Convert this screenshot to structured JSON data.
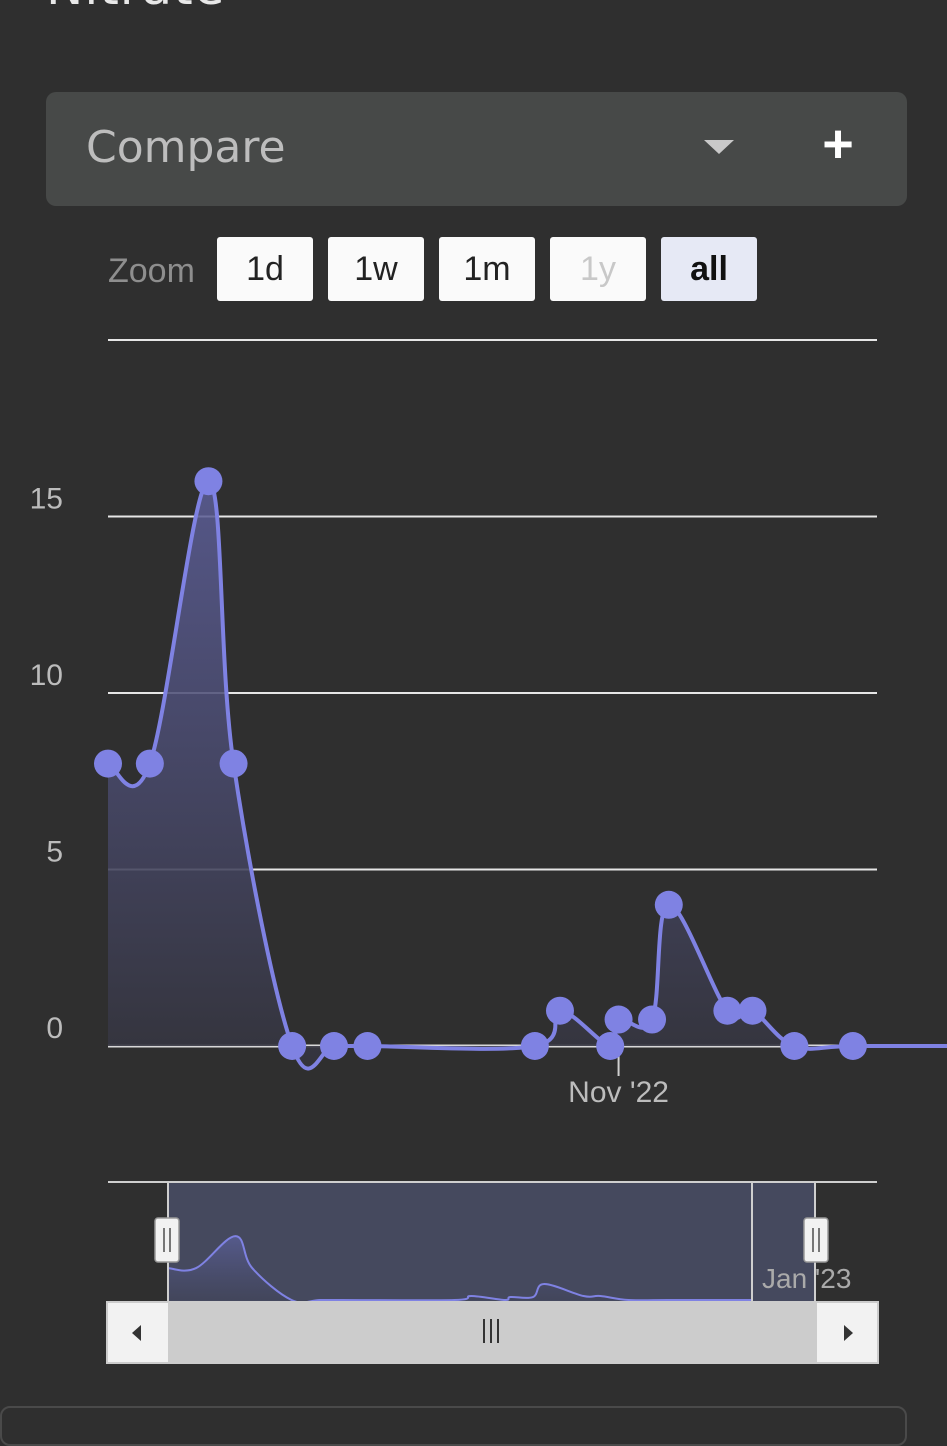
{
  "header": {
    "title": "Nitrate"
  },
  "compare": {
    "label": "Compare",
    "caret_icon": "chevron-down-icon",
    "add_icon": "plus-icon"
  },
  "zoom": {
    "label": "Zoom",
    "buttons": [
      {
        "label": "1d",
        "state": "normal"
      },
      {
        "label": "1w",
        "state": "normal"
      },
      {
        "label": "1m",
        "state": "normal"
      },
      {
        "label": "1y",
        "state": "disabled"
      },
      {
        "label": "all",
        "state": "selected"
      }
    ]
  },
  "chart_data": {
    "type": "area",
    "title": "",
    "xlabel": "",
    "ylabel": "",
    "x_tick_labels": [
      "Nov '22",
      "Jan '23"
    ],
    "y_tick_labels": [
      "0",
      "5",
      "10",
      "15"
    ],
    "ylim": [
      0,
      20
    ],
    "grid": true,
    "series": [
      {
        "color": "#7f82e3",
        "points": [
          {
            "x": "2022-09-01",
            "y": 8
          },
          {
            "x": "2022-09-06",
            "y": 8
          },
          {
            "x": "2022-09-13",
            "y": 16
          },
          {
            "x": "2022-09-16",
            "y": 8
          },
          {
            "x": "2022-09-23",
            "y": 0
          },
          {
            "x": "2022-09-28",
            "y": 0
          },
          {
            "x": "2022-10-02",
            "y": 0
          },
          {
            "x": "2022-10-22",
            "y": 0
          },
          {
            "x": "2022-10-25",
            "y": 1
          },
          {
            "x": "2022-10-31",
            "y": 0
          },
          {
            "x": "2022-11-01",
            "y": 0.75
          },
          {
            "x": "2022-11-05",
            "y": 0.75
          },
          {
            "x": "2022-11-07",
            "y": 4
          },
          {
            "x": "2022-11-14",
            "y": 1
          },
          {
            "x": "2022-11-17",
            "y": 1
          },
          {
            "x": "2022-11-22",
            "y": 0
          },
          {
            "x": "2022-11-29",
            "y": 0
          },
          {
            "x": "2022-12-14",
            "y": 0
          }
        ]
      }
    ],
    "navigator": {
      "x_tick_labels": [
        "Jan '23"
      ],
      "grip_icon": "grip-icon"
    },
    "scrollbar": {
      "left_icon": "arrow-left-icon",
      "right_icon": "arrow-right-icon",
      "thumb_icon": "grip-lines-icon"
    }
  }
}
